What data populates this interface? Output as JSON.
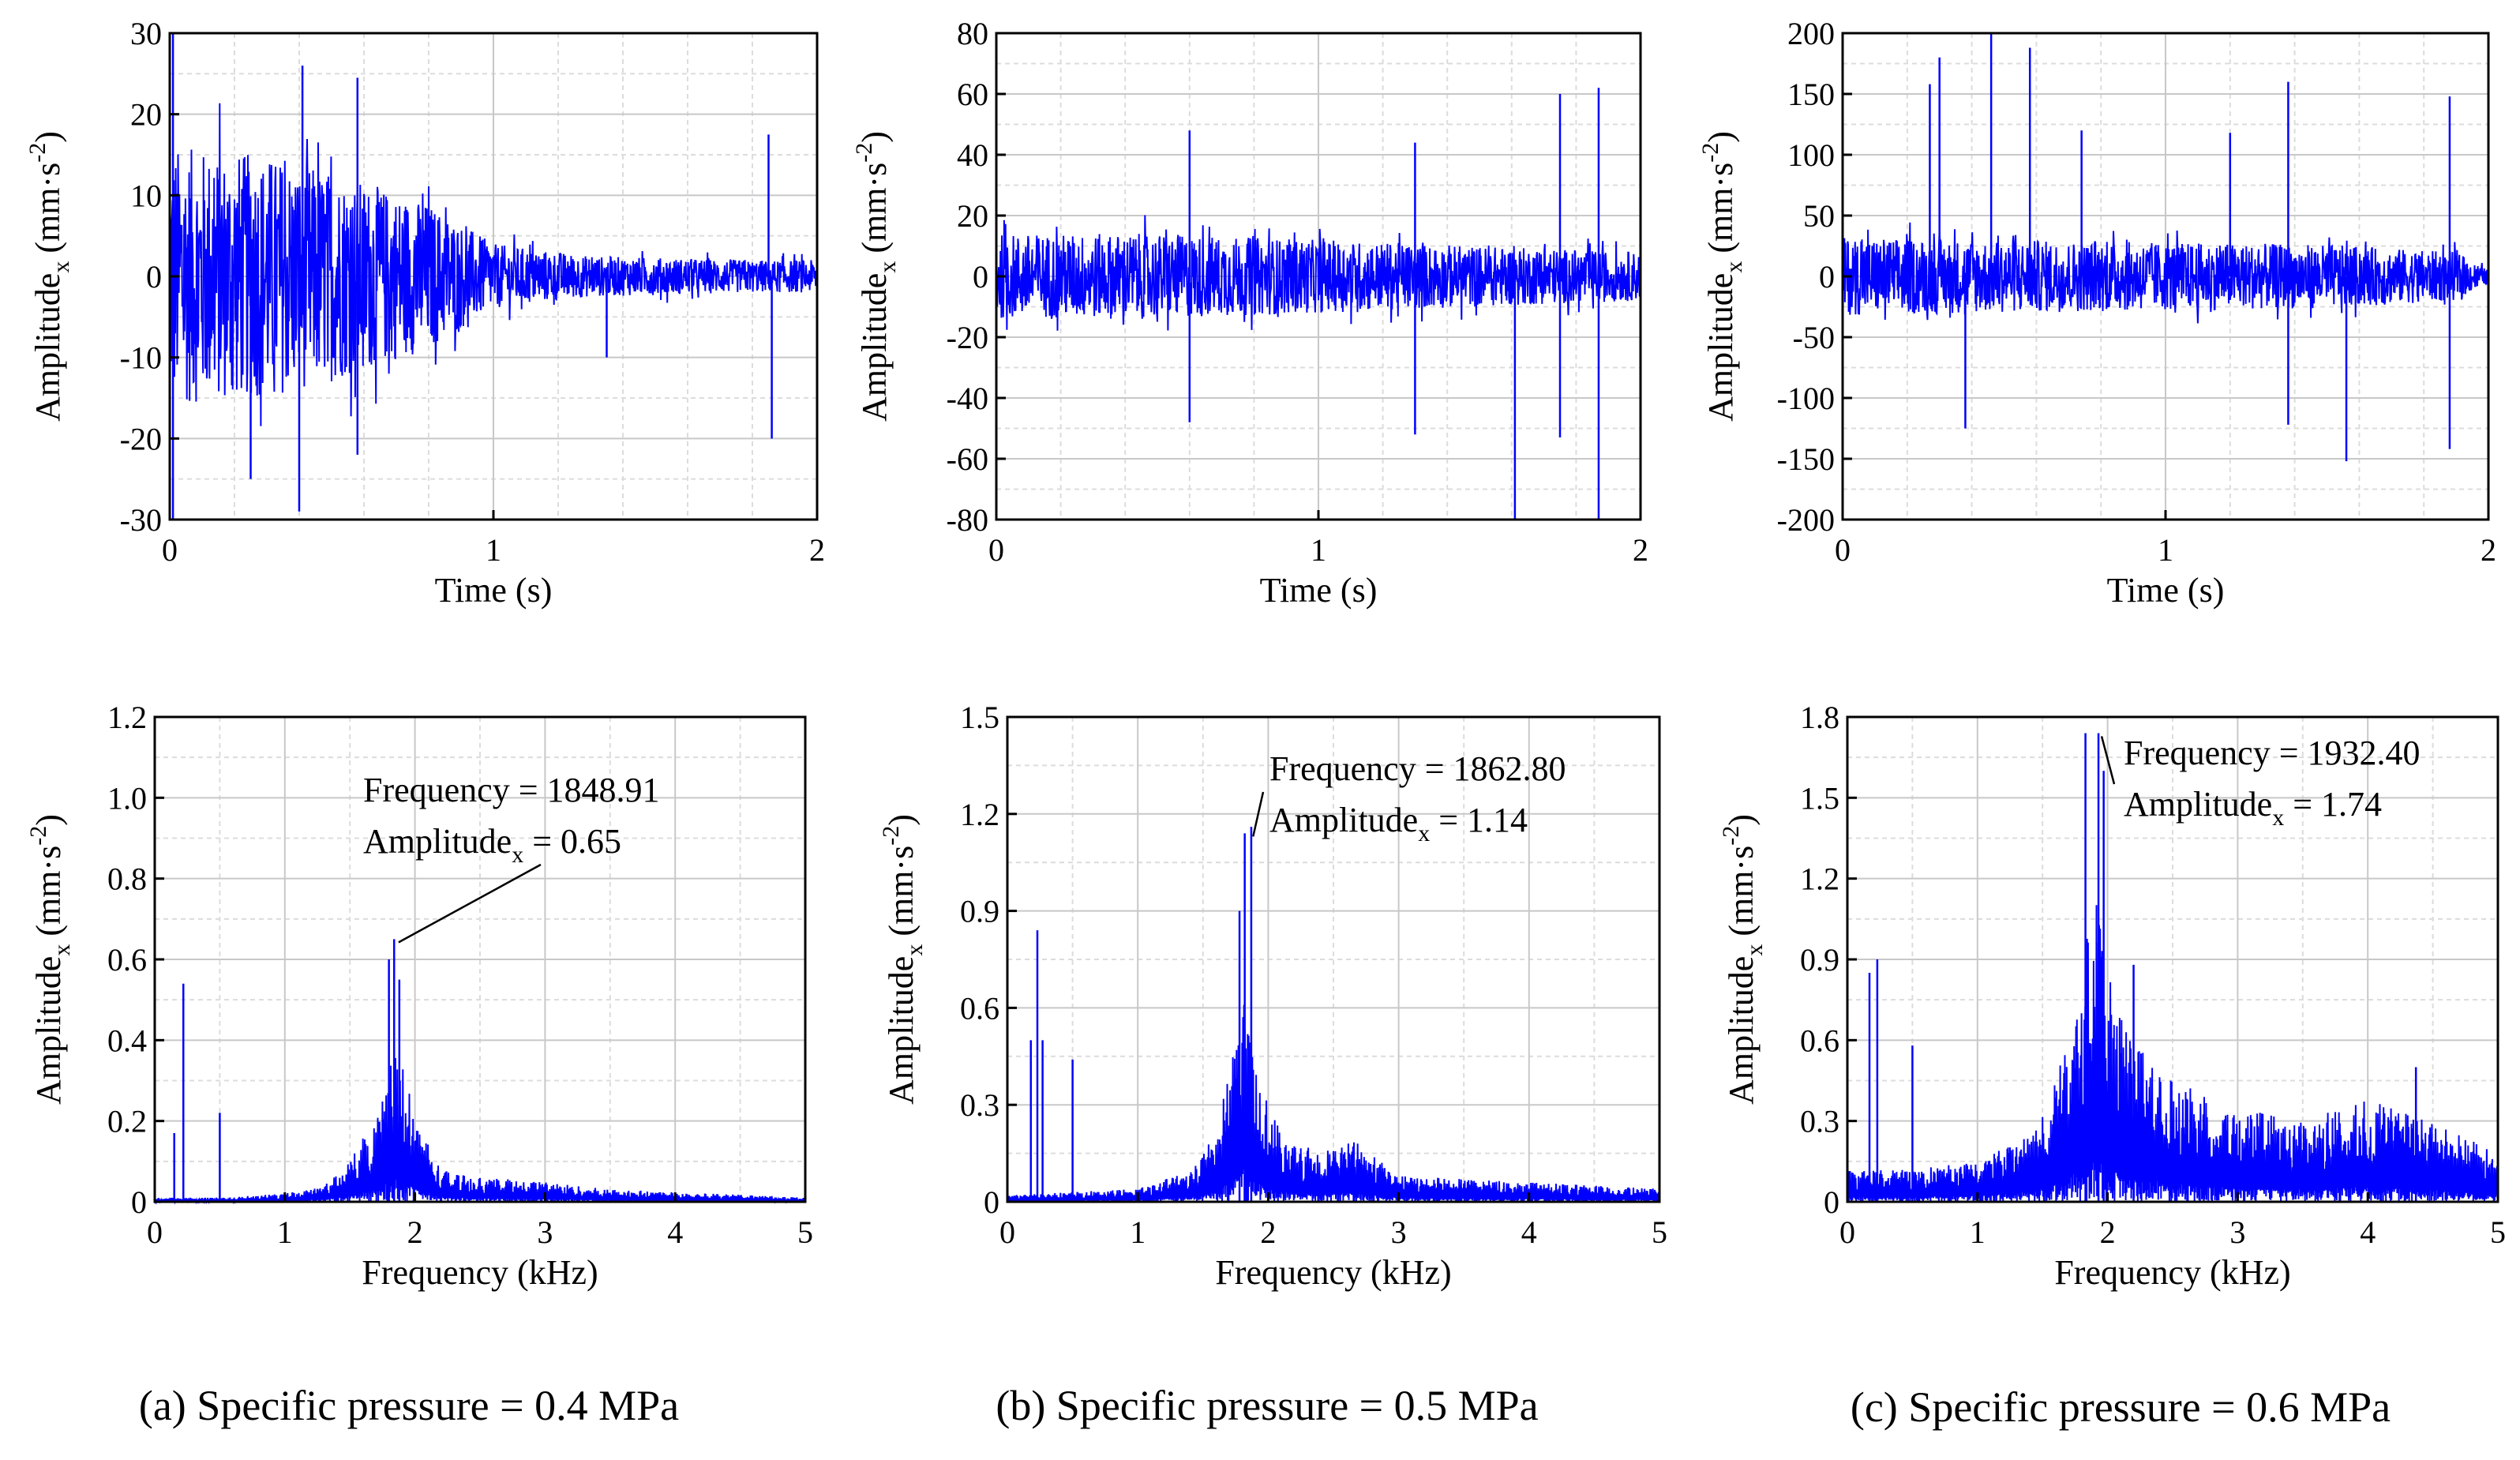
{
  "colors": {
    "signal": "#0000ff",
    "frame": "#000000",
    "grid_major": "#c8c8c8",
    "grid_minor": "#dcdcdc",
    "background": "#ffffff"
  },
  "panels": [
    {
      "caption": "(a) Specific pressure = 0.4 MPa"
    },
    {
      "caption": "(b) Specific pressure = 0.5 MPa"
    },
    {
      "caption": "(c) Specific pressure = 0.6 MPa"
    }
  ],
  "chart_data": [
    {
      "type": "line",
      "panel": "a",
      "domain": "time",
      "xlabel": "Time (s)",
      "ylabel_base": "Amplitude",
      "ylabel_sub": "x",
      "ylabel_unit": "(mm·s",
      "ylabel_sup": "-2",
      "ylabel_close": ")",
      "xlim": [
        0,
        2
      ],
      "ylim": [
        -30,
        30
      ],
      "xticks": [
        0,
        1,
        2
      ],
      "yticks": [
        -30,
        -20,
        -10,
        0,
        10,
        20,
        30
      ],
      "grid": true,
      "series": [
        {
          "envelope": [
            [
              0,
              16
            ],
            [
              0.3,
              15
            ],
            [
              0.5,
              13
            ],
            [
              0.8,
              9
            ],
            [
              1.0,
              4
            ],
            [
              1.3,
              2.5
            ],
            [
              1.8,
              2
            ],
            [
              2.0,
              2
            ]
          ]
        }
      ],
      "spikes": [
        [
          0.01,
          30
        ],
        [
          0.01,
          -30
        ],
        [
          0.25,
          -25
        ],
        [
          0.4,
          -29
        ],
        [
          0.41,
          26
        ],
        [
          0.58,
          24.5
        ],
        [
          0.58,
          -22
        ],
        [
          1.35,
          -10
        ],
        [
          1.85,
          17.5
        ],
        [
          1.86,
          -20
        ]
      ]
    },
    {
      "type": "line",
      "panel": "b",
      "domain": "time",
      "xlabel": "Time (s)",
      "ylabel_base": "Amplitude",
      "ylabel_sub": "x",
      "ylabel_unit": "(mm·s",
      "ylabel_sup": "-2",
      "ylabel_close": ")",
      "xlim": [
        0,
        2
      ],
      "ylim": [
        -80,
        80
      ],
      "xticks": [
        0,
        1,
        2
      ],
      "yticks": [
        -80,
        -60,
        -40,
        -20,
        0,
        20,
        40,
        60,
        80
      ],
      "grid": true,
      "series": [
        {
          "envelope": [
            [
              0,
              14
            ],
            [
              0.5,
              14
            ],
            [
              1.0,
              12
            ],
            [
              1.5,
              10
            ],
            [
              2.0,
              8
            ]
          ]
        }
      ],
      "spikes": [
        [
          0.0,
          40
        ],
        [
          0.6,
          48
        ],
        [
          0.6,
          -48
        ],
        [
          1.3,
          -52
        ],
        [
          1.3,
          44
        ],
        [
          1.61,
          -80
        ],
        [
          1.75,
          60
        ],
        [
          1.75,
          -53
        ],
        [
          1.87,
          62
        ],
        [
          1.87,
          -80
        ]
      ]
    },
    {
      "type": "line",
      "panel": "c",
      "domain": "time",
      "xlabel": "Time (s)",
      "ylabel_base": "Amplitude",
      "ylabel_sub": "x",
      "ylabel_unit": "(mm·s",
      "ylabel_sup": "-2",
      "ylabel_close": ")",
      "xlim": [
        0,
        2
      ],
      "ylim": [
        -200,
        200
      ],
      "xticks": [
        0,
        1,
        2
      ],
      "yticks": [
        -200,
        -150,
        -100,
        -50,
        0,
        50,
        100,
        150,
        200
      ],
      "grid": true,
      "series": [
        {
          "envelope": [
            [
              0,
              32
            ],
            [
              0.5,
              30
            ],
            [
              1.0,
              28
            ],
            [
              1.5,
              26
            ],
            [
              1.9,
              20
            ],
            [
              2.0,
              5
            ]
          ]
        }
      ],
      "spikes": [
        [
          0.27,
          158
        ],
        [
          0.3,
          180
        ],
        [
          0.38,
          -125
        ],
        [
          0.46,
          200
        ],
        [
          0.58,
          188
        ],
        [
          0.74,
          120
        ],
        [
          1.2,
          118
        ],
        [
          1.38,
          160
        ],
        [
          1.38,
          -122
        ],
        [
          1.56,
          -152
        ],
        [
          1.88,
          148
        ],
        [
          1.88,
          -142
        ]
      ]
    },
    {
      "type": "line",
      "panel": "a",
      "domain": "frequency",
      "xlabel": "Frequency (kHz)",
      "ylabel_base": "Amplitude",
      "ylabel_sub": "x",
      "ylabel_unit": "(mm·s",
      "ylabel_sup": "-2",
      "ylabel_close": ")",
      "xlim": [
        0,
        5
      ],
      "ylim": [
        0,
        1.2
      ],
      "xticks": [
        0,
        1,
        2,
        3,
        4,
        5
      ],
      "yticks": [
        0,
        0.2,
        0.4,
        0.6,
        0.8,
        1.0,
        1.2
      ],
      "ytick_labels": [
        "0",
        "0.2",
        "0.4",
        "0.6",
        "0.8",
        "1.0",
        "1.2"
      ],
      "grid": true,
      "series": [
        {
          "envelope": [
            [
              0,
              0.01
            ],
            [
              0.5,
              0.01
            ],
            [
              1.0,
              0.02
            ],
            [
              1.3,
              0.04
            ],
            [
              1.5,
              0.1
            ],
            [
              1.7,
              0.22
            ],
            [
              1.8,
              0.32
            ],
            [
              1.85,
              0.42
            ],
            [
              1.9,
              0.34
            ],
            [
              2.0,
              0.22
            ],
            [
              2.2,
              0.08
            ],
            [
              2.5,
              0.06
            ],
            [
              3.0,
              0.05
            ],
            [
              3.5,
              0.03
            ],
            [
              4.0,
              0.025
            ],
            [
              5.0,
              0.01
            ]
          ]
        }
      ],
      "spikes": [
        [
          0.15,
          0.17
        ],
        [
          0.22,
          0.54
        ],
        [
          0.5,
          0.22
        ],
        [
          1.84,
          0.65
        ],
        [
          1.8,
          0.6
        ],
        [
          1.88,
          0.55
        ]
      ],
      "annotation": {
        "line1": "Frequency = 1848.91",
        "line2_base": "Amplitude",
        "line2_sub": "x",
        "line2_value": " = 0.65",
        "peak": [
          1.85,
          0.65
        ]
      }
    },
    {
      "type": "line",
      "panel": "b",
      "domain": "frequency",
      "xlabel": "Frequency (kHz)",
      "ylabel_base": "Amplitude",
      "ylabel_sub": "x",
      "ylabel_unit": "(mm·s",
      "ylabel_sup": "-2",
      "ylabel_close": ")",
      "xlim": [
        0,
        5
      ],
      "ylim": [
        0,
        1.5
      ],
      "xticks": [
        0,
        1,
        2,
        3,
        4,
        5
      ],
      "yticks": [
        0,
        0.3,
        0.6,
        0.9,
        1.2,
        1.5
      ],
      "ytick_labels": [
        "0",
        "0.3",
        "0.6",
        "0.9",
        "1.2",
        "1.5"
      ],
      "grid": true,
      "series": [
        {
          "envelope": [
            [
              0,
              0.02
            ],
            [
              0.5,
              0.03
            ],
            [
              1.0,
              0.04
            ],
            [
              1.4,
              0.1
            ],
            [
              1.6,
              0.22
            ],
            [
              1.75,
              0.5
            ],
            [
              1.82,
              0.72
            ],
            [
              1.9,
              0.4
            ],
            [
              2.1,
              0.22
            ],
            [
              2.4,
              0.15
            ],
            [
              2.65,
              0.2
            ],
            [
              3.0,
              0.08
            ],
            [
              3.5,
              0.07
            ],
            [
              4.0,
              0.06
            ],
            [
              5.0,
              0.04
            ]
          ]
        }
      ],
      "spikes": [
        [
          0.18,
          0.5
        ],
        [
          0.23,
          0.84
        ],
        [
          0.27,
          0.5
        ],
        [
          0.5,
          0.44
        ],
        [
          1.82,
          1.14
        ],
        [
          1.87,
          1.16
        ],
        [
          1.78,
          0.9
        ]
      ],
      "annotation": {
        "line1": "Frequency = 1862.80",
        "line2_base": "Amplitude",
        "line2_sub": "x",
        "line2_value": " = 1.14",
        "peak": [
          1.86,
          1.14
        ]
      }
    },
    {
      "type": "line",
      "panel": "c",
      "domain": "frequency",
      "xlabel": "Frequency (kHz)",
      "ylabel_base": "Amplitude",
      "ylabel_sub": "x",
      "ylabel_unit": "(mm·s",
      "ylabel_sup": "-2",
      "ylabel_close": ")",
      "xlim": [
        0,
        5
      ],
      "ylim": [
        0,
        1.8
      ],
      "xticks": [
        0,
        1,
        2,
        3,
        4,
        5
      ],
      "yticks": [
        0,
        0.3,
        0.6,
        0.9,
        1.2,
        1.5,
        1.8
      ],
      "ytick_labels": [
        "0",
        "0.3",
        "0.6",
        "0.9",
        "1.2",
        "1.5",
        "1.8"
      ],
      "grid": true,
      "series": [
        {
          "envelope": [
            [
              0,
              0.12
            ],
            [
              0.5,
              0.12
            ],
            [
              1.0,
              0.15
            ],
            [
              1.4,
              0.25
            ],
            [
              1.6,
              0.45
            ],
            [
              1.75,
              0.7
            ],
            [
              1.85,
              1.0
            ],
            [
              1.93,
              1.2
            ],
            [
              2.0,
              0.85
            ],
            [
              2.2,
              0.6
            ],
            [
              2.5,
              0.45
            ],
            [
              3.0,
              0.35
            ],
            [
              3.5,
              0.3
            ],
            [
              4.0,
              0.38
            ],
            [
              4.5,
              0.3
            ],
            [
              5.0,
              0.18
            ]
          ]
        }
      ],
      "spikes": [
        [
          0.17,
          0.85
        ],
        [
          0.23,
          0.9
        ],
        [
          0.5,
          0.58
        ],
        [
          1.83,
          1.74
        ],
        [
          1.93,
          1.74
        ],
        [
          1.97,
          1.6
        ],
        [
          2.2,
          0.88
        ],
        [
          4.37,
          0.5
        ]
      ],
      "annotation": {
        "line1": "Frequency = 1932.40",
        "line2_base": "Amplitude",
        "line2_sub": "x",
        "line2_value": " = 1.74",
        "peak": [
          1.93,
          1.74
        ]
      }
    }
  ]
}
